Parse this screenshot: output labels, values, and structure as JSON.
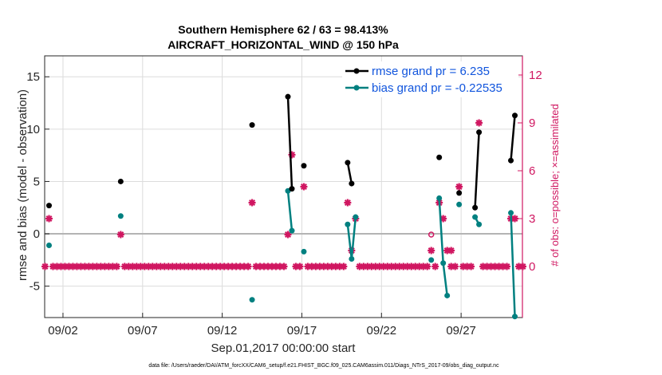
{
  "chart_data": {
    "type": "line",
    "title_line1": "Southern Hemisphere 62 / 63 = 98.413%",
    "title_line2": "AIRCRAFT_HORIZONTAL_WIND @ 150 hPa",
    "xlabel": "Sep.01,2017 00:00:00 start",
    "ylabel_left": "rmse and bias (model - observation)",
    "ylabel_right": "# of obs: o=possible; ×=assimilated",
    "xlim": [
      0.85,
      30.85
    ],
    "ylim_left": [
      -8,
      17
    ],
    "ylim_right": [
      -3.2,
      13.2
    ],
    "x_tick_values": [
      2,
      7,
      12,
      17,
      22,
      27
    ],
    "x_tick_labels": [
      "09/02",
      "09/07",
      "09/12",
      "09/17",
      "09/22",
      "09/27"
    ],
    "y_left_tick_values": [
      -5,
      0,
      5,
      10,
      15
    ],
    "y_left_tick_labels": [
      "-5",
      "0",
      "5",
      "10",
      "15"
    ],
    "y_right_tick_values": [
      0,
      3,
      6,
      9,
      12
    ],
    "y_right_tick_labels": [
      "0",
      "3",
      "6",
      "9",
      "12"
    ],
    "colors": {
      "rmse": "#000000",
      "bias": "#008080",
      "obs": "#d01761",
      "zero_line": "#b4b4b4",
      "grid": "#dcdcdc",
      "legend_text": "#1155dd"
    },
    "series": [
      {
        "name": "rmse grand pr = 6.235",
        "axis": "left",
        "x": [
          1.125,
          5.625,
          13.875,
          16.125,
          16.375,
          17.125,
          19.875,
          20.125,
          25.625,
          26.875,
          27.875,
          28.125,
          30.125,
          30.375
        ],
        "y": [
          2.7,
          5.0,
          10.4,
          13.1,
          4.3,
          6.5,
          6.8,
          4.8,
          7.3,
          3.9,
          2.5,
          9.7,
          7.0,
          11.3
        ],
        "segment_break_after": [
          0,
          1,
          2,
          4,
          5,
          7,
          8,
          9,
          11
        ]
      },
      {
        "name": "bias grand pr = -0.22535",
        "axis": "left",
        "x": [
          1.125,
          5.625,
          13.875,
          16.125,
          16.375,
          17.125,
          19.875,
          20.125,
          20.375,
          25.125,
          25.625,
          25.875,
          26.125,
          26.875,
          27.875,
          28.125,
          30.125,
          30.375
        ],
        "y": [
          -1.1,
          1.7,
          -6.3,
          4.1,
          0.3,
          -1.7,
          0.9,
          -2.4,
          1.6,
          -2.5,
          3.4,
          -2.8,
          -5.9,
          2.8,
          1.6,
          0.9,
          2.0,
          -7.9
        ],
        "segment_break_after": [
          0,
          1,
          2,
          4,
          5,
          8,
          9,
          12,
          13,
          15
        ]
      },
      {
        "name": "# obs possible",
        "axis": "right",
        "marker": "o",
        "x": [
          25.125
        ],
        "y": [
          2
        ]
      },
      {
        "name": "# obs assimilated",
        "axis": "right",
        "marker": "x",
        "x": [
          1.125,
          5.625,
          13.875,
          16.125,
          16.375,
          17.125,
          19.875,
          20.125,
          20.375,
          25.125,
          25.625,
          25.875,
          26.125,
          26.375,
          26.875,
          28.125,
          30.125,
          30.375
        ],
        "y": [
          3,
          2,
          4,
          2,
          7,
          5,
          4,
          1,
          3,
          1,
          4,
          3,
          1,
          1,
          5,
          9,
          3,
          3
        ]
      }
    ],
    "zero_count_markers": {
      "axis": "right",
      "value": 0,
      "x_start": 0.875,
      "x_end": 30.875,
      "step": 0.25,
      "exclude": [
        1.125,
        5.625,
        13.875,
        16.125,
        16.375,
        17.125,
        19.875,
        20.125,
        20.375,
        25.125,
        25.625,
        25.875,
        26.125,
        26.875,
        27.875,
        28.125,
        30.125,
        30.375
      ]
    },
    "footnote": "data file: /Users/raeder/DAI/ATM_forcXX/CAM6_setup/f.e21.FHIST_BGC.f09_025.CAM6assim.011/Diags_NTrS_2017-09/obs_diag_output.nc"
  }
}
